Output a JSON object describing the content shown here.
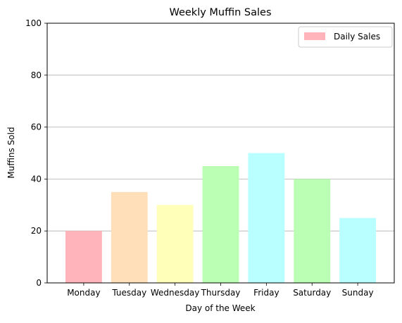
{
  "chart_data": {
    "type": "bar",
    "title": "Weekly Muffin Sales",
    "xlabel": "Day of the Week",
    "ylabel": "Muffins Sold",
    "categories": [
      "Monday",
      "Tuesday",
      "Wednesday",
      "Thursday",
      "Friday",
      "Saturday",
      "Sunday"
    ],
    "series": [
      {
        "name": "Daily Sales",
        "values": [
          20,
          35,
          30,
          45,
          50,
          40,
          25
        ]
      }
    ],
    "bar_colors": [
      "#ffb3ba",
      "#ffdfba",
      "#ffffba",
      "#baffb3",
      "#baffff",
      "#baffb3",
      "#baffff"
    ],
    "legend_color": "#ffb3ba",
    "ylim": [
      0,
      100
    ],
    "yticks": [
      0,
      20,
      40,
      60,
      80,
      100
    ],
    "grid": "y-axis",
    "legend_position": "top-right"
  }
}
